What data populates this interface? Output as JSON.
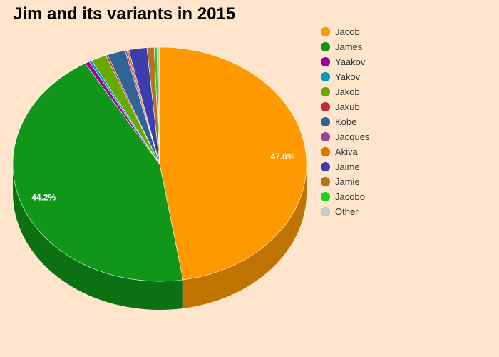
{
  "chart_data": {
    "type": "pie",
    "title": "Jim and its variants in 2015",
    "slices": [
      {
        "label": "Jacob",
        "value": 47.6,
        "color": "#ff9900"
      },
      {
        "label": "James",
        "value": 44.2,
        "color": "#109618"
      },
      {
        "label": "Yaakov",
        "value": 0.5,
        "color": "#990099"
      },
      {
        "label": "Yakov",
        "value": 0.3,
        "color": "#0099c6"
      },
      {
        "label": "Jakob",
        "value": 1.7,
        "color": "#66aa00"
      },
      {
        "label": "Jakub",
        "value": 0.2,
        "color": "#b82e2e"
      },
      {
        "label": "Kobe",
        "value": 2.0,
        "color": "#316395"
      },
      {
        "label": "Jacques",
        "value": 0.2,
        "color": "#994499"
      },
      {
        "label": "Akiva",
        "value": 0.2,
        "color": "#e67300"
      },
      {
        "label": "Jaime",
        "value": 2.0,
        "color": "#3b3eac"
      },
      {
        "label": "Jamie",
        "value": 0.8,
        "color": "#b77322"
      },
      {
        "label": "Jacobo",
        "value": 0.3,
        "color": "#16d620"
      },
      {
        "label": "Other",
        "value": 0.3,
        "color": "#cccccc"
      }
    ],
    "data_labels": [
      {
        "label": "Jacob",
        "text": "47.6%"
      },
      {
        "label": "James",
        "text": "44.2%"
      }
    ],
    "legend_position": "right"
  }
}
